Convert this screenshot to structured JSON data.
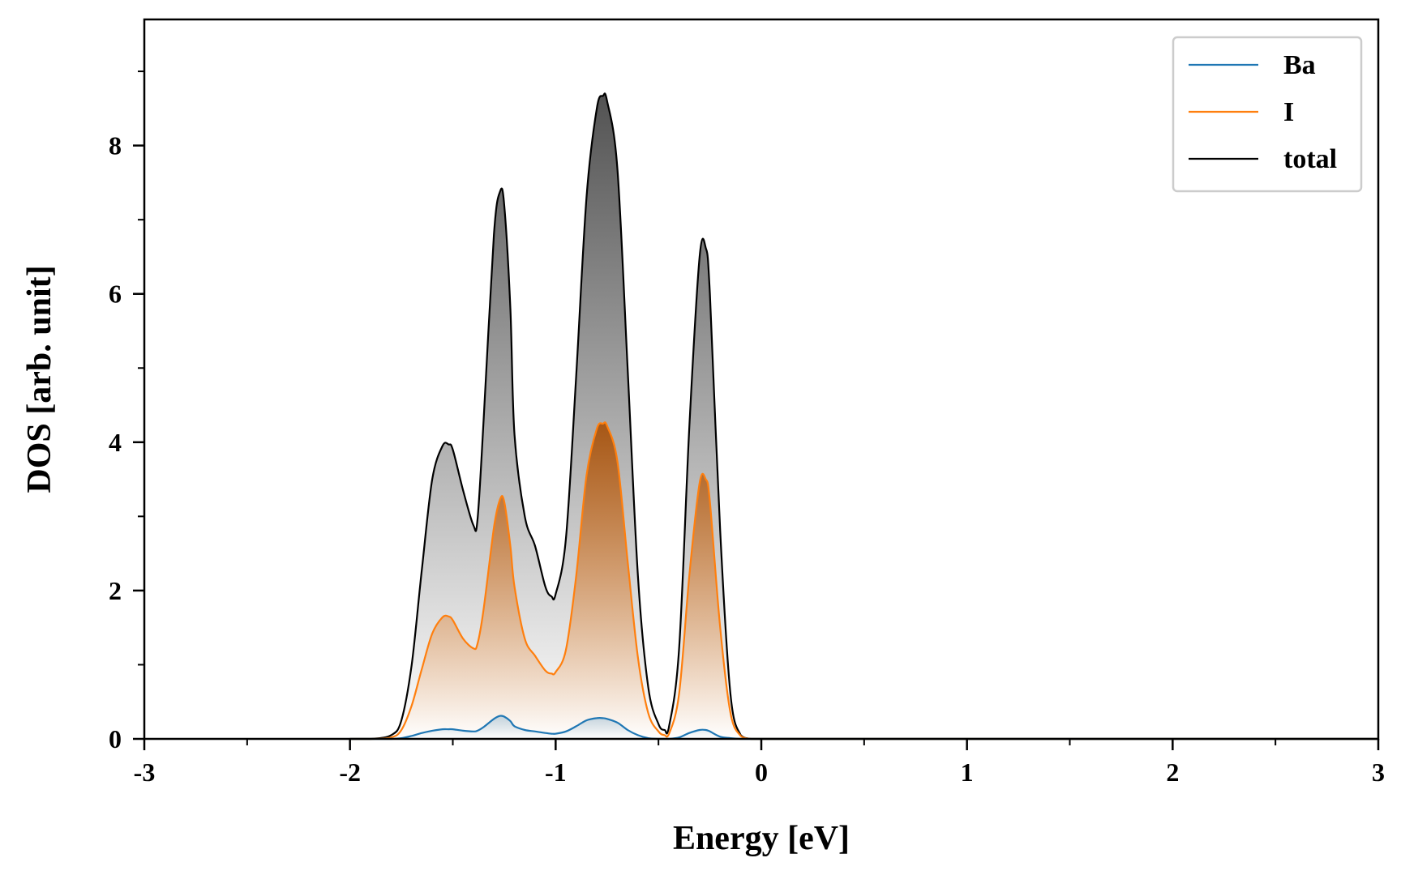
{
  "chart_data": {
    "type": "line",
    "title": "",
    "xlabel": "Energy [eV]",
    "ylabel": "DOS [arb. unit]",
    "xlim": [
      -3,
      3
    ],
    "ylim": [
      0,
      9.7
    ],
    "xticks": [
      -3,
      -2,
      -1,
      0,
      1,
      2,
      3
    ],
    "xtick_labels": [
      "-3",
      "-2",
      "-1",
      "0",
      "1",
      "2",
      "3"
    ],
    "yticks": [
      0,
      2,
      4,
      6,
      8
    ],
    "ytick_labels": [
      "0",
      "2",
      "4",
      "6",
      "8"
    ],
    "grid": false,
    "legend": "top-right",
    "fill": "gradient under each curve",
    "x": [
      -2.0,
      -1.9,
      -1.8,
      -1.75,
      -1.7,
      -1.65,
      -1.6,
      -1.55,
      -1.52,
      -1.5,
      -1.45,
      -1.4,
      -1.38,
      -1.35,
      -1.3,
      -1.27,
      -1.25,
      -1.22,
      -1.2,
      -1.15,
      -1.1,
      -1.05,
      -1.02,
      -1.0,
      -0.95,
      -0.9,
      -0.85,
      -0.8,
      -0.77,
      -0.75,
      -0.7,
      -0.65,
      -0.6,
      -0.55,
      -0.5,
      -0.47,
      -0.45,
      -0.4,
      -0.35,
      -0.3,
      -0.27,
      -0.25,
      -0.2,
      -0.15,
      -0.1,
      -0.05,
      0.0,
      0.5,
      1.0,
      1.5,
      2.0,
      2.5,
      3.0
    ],
    "series": [
      {
        "name": "Ba",
        "color": "#1f77b4",
        "values": [
          0,
          0,
          0,
          0.01,
          0.04,
          0.08,
          0.11,
          0.13,
          0.13,
          0.13,
          0.11,
          0.1,
          0.11,
          0.16,
          0.27,
          0.31,
          0.3,
          0.24,
          0.17,
          0.12,
          0.1,
          0.08,
          0.07,
          0.07,
          0.1,
          0.17,
          0.25,
          0.28,
          0.28,
          0.27,
          0.22,
          0.12,
          0.05,
          0.01,
          0,
          0,
          0,
          0.02,
          0.08,
          0.12,
          0.12,
          0.1,
          0.03,
          0.01,
          0,
          0,
          0,
          0,
          0,
          0,
          0,
          0,
          0
        ]
      },
      {
        "name": "I",
        "color": "#ff7f0e",
        "values": [
          0,
          0,
          0.02,
          0.12,
          0.45,
          0.95,
          1.42,
          1.64,
          1.65,
          1.6,
          1.35,
          1.22,
          1.28,
          1.75,
          2.85,
          3.23,
          3.2,
          2.6,
          2.05,
          1.35,
          1.12,
          0.92,
          0.88,
          0.9,
          1.2,
          2.2,
          3.55,
          4.18,
          4.25,
          4.22,
          3.75,
          2.4,
          1.1,
          0.35,
          0.1,
          0.05,
          0.06,
          0.6,
          2.2,
          3.45,
          3.5,
          3.2,
          1.5,
          0.35,
          0.04,
          0,
          0,
          0,
          0,
          0,
          0,
          0,
          0
        ]
      },
      {
        "name": "total",
        "color": "#000000",
        "values": [
          0,
          0,
          0.05,
          0.25,
          1.0,
          2.3,
          3.5,
          3.95,
          3.97,
          3.9,
          3.35,
          2.88,
          2.95,
          4.3,
          6.8,
          7.38,
          7.2,
          5.8,
          4.1,
          3.0,
          2.6,
          2.05,
          1.92,
          1.95,
          2.7,
          4.9,
          7.3,
          8.5,
          8.67,
          8.6,
          7.7,
          5.0,
          2.2,
          0.7,
          0.2,
          0.12,
          0.15,
          1.2,
          4.2,
          6.5,
          6.62,
          6.0,
          2.8,
          0.6,
          0.05,
          0,
          0,
          0,
          0,
          0,
          0,
          0,
          0
        ]
      }
    ]
  }
}
